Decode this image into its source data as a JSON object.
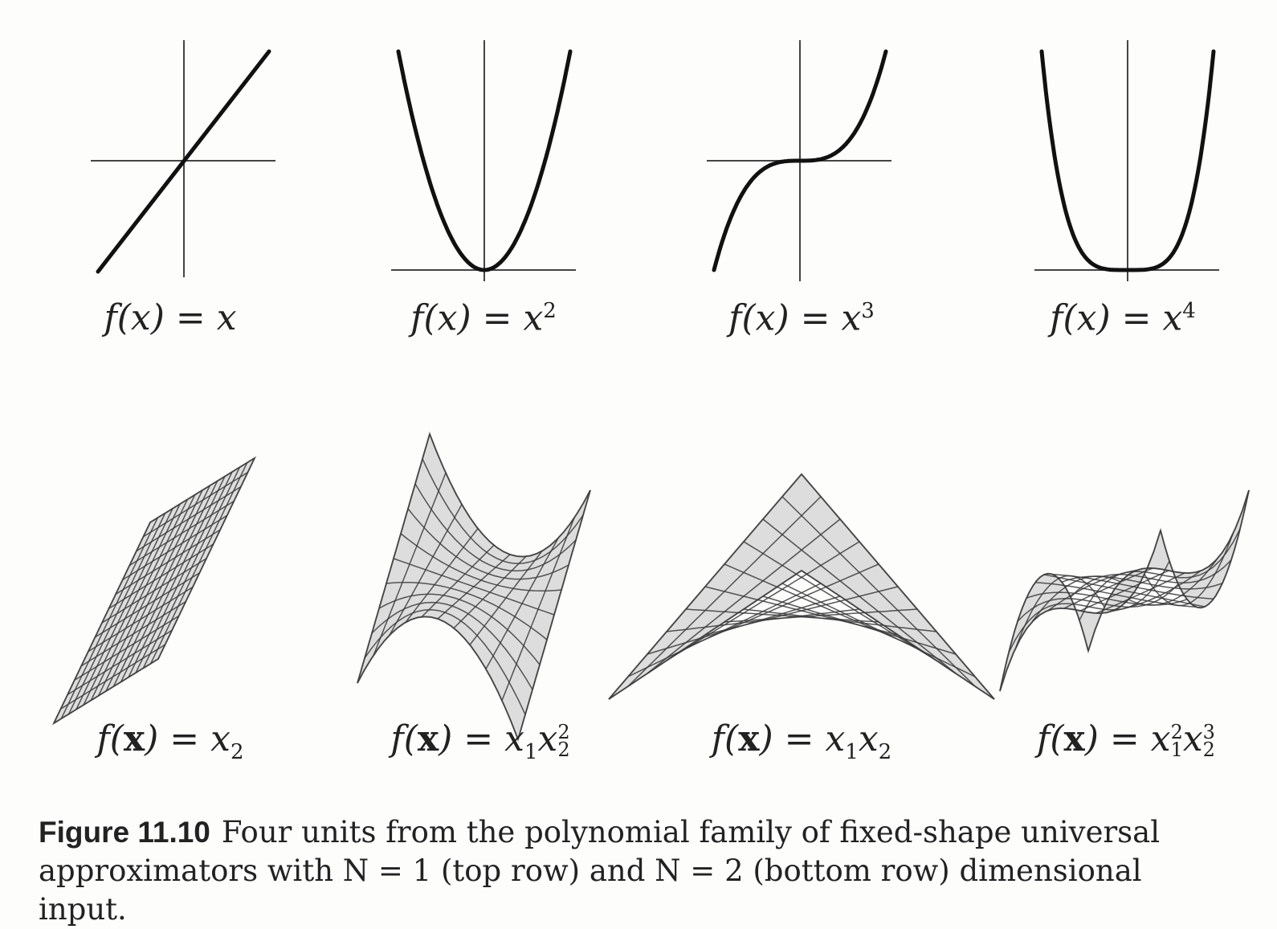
{
  "figure": {
    "label": "Figure 11.10",
    "caption_line1": "Four units from the polynomial family of fixed-shape universal",
    "caption_line2": "approximators with N = 1 (top row) and N = 2 (bottom row) dimensional input."
  },
  "top_row": [
    {
      "func": "x",
      "lhs": "f(x) = x",
      "rhs_base": "",
      "power": ""
    },
    {
      "func": "x^2",
      "lhs": "f(x) = x",
      "power": "2"
    },
    {
      "func": "x^3",
      "lhs": "f(x) = x",
      "power": "3"
    },
    {
      "func": "x^4",
      "lhs": "f(x) = x",
      "power": "4"
    }
  ],
  "bottom_row": [
    {
      "func": "x2"
    },
    {
      "func": "x1*x2^2"
    },
    {
      "func": "x1*x2"
    },
    {
      "func": "x1^2*x2^3"
    }
  ],
  "colors": {
    "ink": "#111111",
    "axis": "#444444",
    "surface_fill": "#d4d4d4",
    "mesh": "#3a3a3a"
  }
}
